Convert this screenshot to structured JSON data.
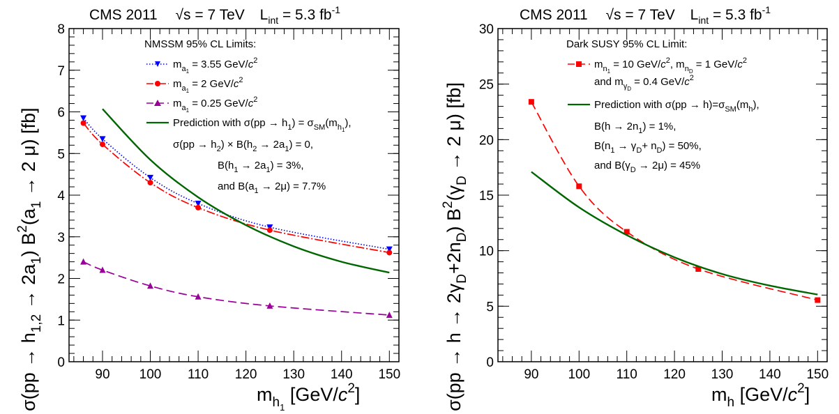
{
  "chart_data": [
    {
      "type": "line",
      "header": "CMS 2011   √s = 7 TeV   L_int = 5.3 fb^-1",
      "xlabel": "m_h1 [GeV/c^2]",
      "ylabel": "σ(pp → h_1,2 → 2a_1) B^2(a_1 → 2 μ) [fb]",
      "xlim": [
        83,
        152
      ],
      "ylim": [
        0,
        8
      ],
      "xticks": [
        90,
        100,
        110,
        120,
        130,
        140,
        150
      ],
      "yticks": [
        0,
        1,
        2,
        3,
        4,
        5,
        6,
        7,
        8
      ],
      "legend_title": "NMSSM 95% CL Limits:",
      "legend_lines": [
        "Prediction with σ(pp → h_1) = σ_SM(m_h1),",
        "σ(pp → h_2) × B(h_2 → 2a_1) = 0,",
        "B(h_1 → 2a_1) = 3%,",
        "and B(a_1 → 2μ) = 7.7%"
      ],
      "series": [
        {
          "name": "m_a1 = 3.55 GeV/c^2",
          "color": "#0000ff",
          "marker": "triangle-down",
          "dash": "dotted",
          "x": [
            86,
            90,
            100,
            110,
            125,
            150
          ],
          "y": [
            5.85,
            5.35,
            4.42,
            3.8,
            3.23,
            2.7
          ]
        },
        {
          "name": "m_a1 = 2 GeV/c^2",
          "color": "#ff0000",
          "marker": "circle",
          "dash": "dashdot",
          "x": [
            86,
            90,
            100,
            110,
            125,
            150
          ],
          "y": [
            5.73,
            5.22,
            4.3,
            3.7,
            3.16,
            2.62
          ]
        },
        {
          "name": "m_a1 = 0.25 GeV/c^2",
          "color": "#990099",
          "marker": "triangle-up",
          "dash": "longdash",
          "x": [
            86,
            90,
            100,
            110,
            125,
            150
          ],
          "y": [
            2.4,
            2.2,
            1.82,
            1.56,
            1.34,
            1.12
          ]
        },
        {
          "name": "Prediction",
          "color": "#006600",
          "marker": "none",
          "dash": "solid",
          "x": [
            90,
            100,
            110,
            120,
            130,
            140,
            150
          ],
          "y": [
            6.07,
            4.85,
            3.95,
            3.28,
            2.77,
            2.4,
            2.14
          ]
        }
      ]
    },
    {
      "type": "line",
      "header": "CMS 2011   √s = 7 TeV   L_int = 5.3 fb^-1",
      "xlabel": "m_h [GeV/c^2]",
      "ylabel": "σ(pp → h → 2γ_D+2n_D) B^2(γ_D → 2 μ) [fb]",
      "xlim": [
        83,
        152
      ],
      "ylim": [
        0,
        30
      ],
      "xticks": [
        90,
        100,
        110,
        120,
        130,
        140,
        150
      ],
      "yticks": [
        0,
        5,
        10,
        15,
        20,
        25,
        30
      ],
      "legend_title": "Dark SUSY 95% CL Limit:",
      "legend_lines": [
        "m_n1 = 10 GeV/c^2, m_nD = 1 GeV/c^2",
        "and m_γD = 0.4 GeV/c^2",
        "Prediction with σ(pp → h)=σ_SM(m_h),",
        "B(h → 2n_1) = 1%,",
        "B(n_1 → γ_D + n_D) = 50%,",
        "and B(γ_D → 2μ) = 45%"
      ],
      "series": [
        {
          "name": "Dark SUSY limit",
          "color": "#ff0000",
          "marker": "square",
          "dash": "longdash",
          "x": [
            90,
            100,
            110,
            125,
            150
          ],
          "y": [
            23.4,
            15.8,
            11.7,
            8.35,
            5.55
          ]
        },
        {
          "name": "Prediction",
          "color": "#006600",
          "marker": "none",
          "dash": "solid",
          "x": [
            90,
            100,
            110,
            120,
            130,
            140,
            150
          ],
          "y": [
            17.1,
            13.9,
            11.4,
            9.4,
            7.9,
            6.85,
            6.05
          ]
        }
      ]
    }
  ]
}
